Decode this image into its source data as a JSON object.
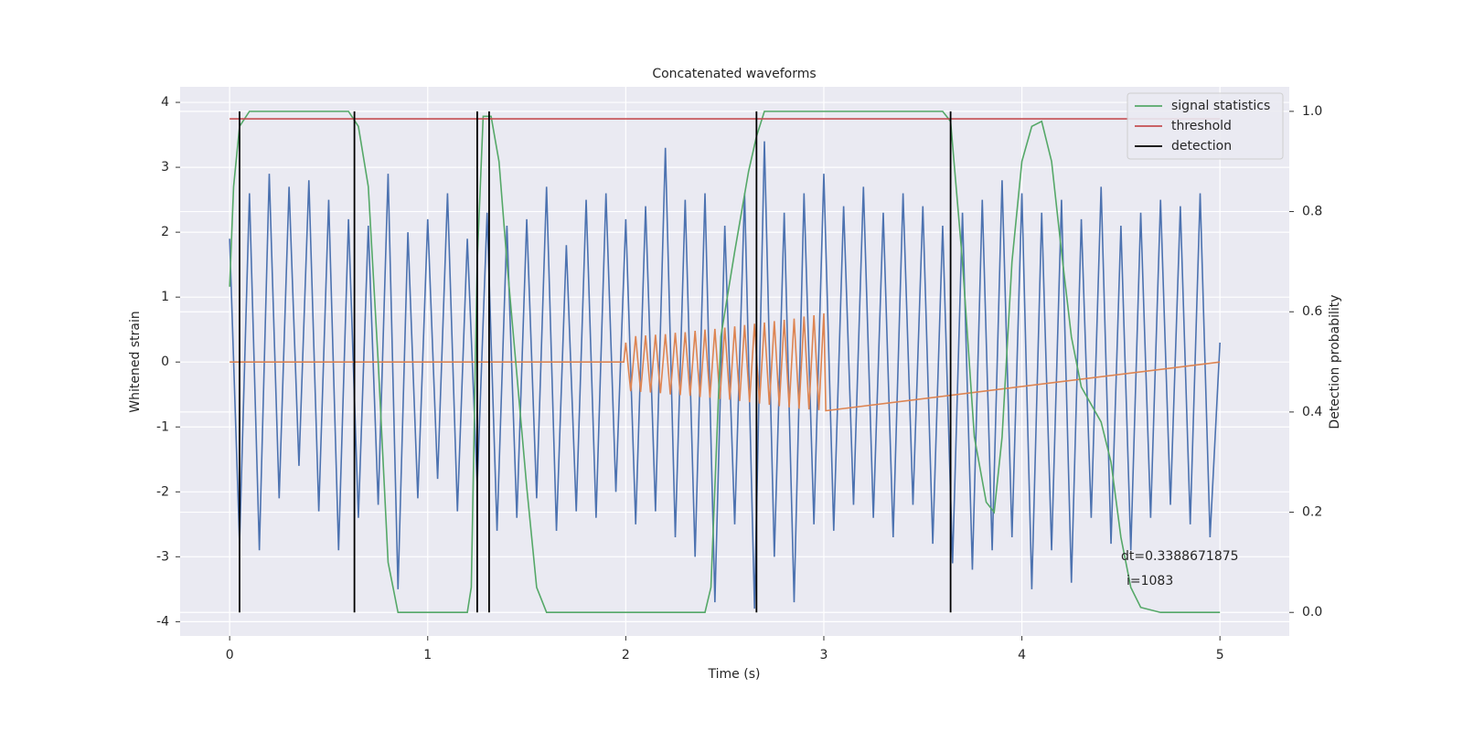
{
  "chart_data": {
    "type": "line",
    "title": "Concatenated waveforms",
    "x_label": "Time (s)",
    "y_label": "Whitened strain",
    "y2_label": "Detection probability",
    "xlim": [
      -0.25,
      5.35
    ],
    "ylim": [
      -4.22,
      4.24
    ],
    "y2lim": [
      -0.047,
      1.049
    ],
    "xticks": [
      0,
      1,
      2,
      3,
      4,
      5
    ],
    "yticks": [
      -4,
      -3,
      -2,
      -1,
      0,
      1,
      2,
      3,
      4
    ],
    "y2ticks": [
      {
        "value": 0,
        "label": "0.0"
      },
      0.2,
      0.4,
      0.6,
      0.8,
      {
        "value": 1,
        "label": "1.0"
      }
    ],
    "grid": true,
    "legend": "upper right",
    "annotations": [
      "dt=0.3388671875",
      "i=1083"
    ],
    "series": [
      {
        "color": "#4c72b0",
        "x": [
          0,
          0.05,
          0.1,
          0.15,
          0.2,
          0.25,
          0.3,
          0.35,
          0.4,
          0.45,
          0.5,
          0.55,
          0.6,
          0.65,
          0.7,
          0.75,
          0.8,
          0.85,
          0.9,
          0.95,
          1,
          1.05,
          1.1,
          1.15,
          1.2,
          1.25,
          1.3,
          1.35,
          1.4,
          1.45,
          1.5,
          1.55,
          1.6,
          1.65,
          1.7,
          1.75,
          1.8,
          1.85,
          1.9,
          1.95,
          2,
          2.05,
          2.1,
          2.15,
          2.2,
          2.25,
          2.3,
          2.35,
          2.4,
          2.45,
          2.5,
          2.55,
          2.6,
          2.65,
          2.7,
          2.75,
          2.8,
          2.85,
          2.9,
          2.95,
          3,
          3.05,
          3.1,
          3.15,
          3.2,
          3.25,
          3.3,
          3.35,
          3.4,
          3.45,
          3.5,
          3.55,
          3.6,
          3.65,
          3.7,
          3.75,
          3.8,
          3.85,
          3.9,
          3.95,
          4,
          4.05,
          4.1,
          4.15,
          4.2,
          4.25,
          4.3,
          4.35,
          4.4,
          4.45,
          4.5,
          4.55,
          4.6,
          4.65,
          4.7,
          4.75,
          4.8,
          4.85,
          4.9,
          4.95,
          5
        ],
        "values": [
          1.9,
          -2.8,
          2.6,
          -2.9,
          2.9,
          -2.1,
          2.7,
          -1.6,
          2.8,
          -2.3,
          2.5,
          -2.9,
          2.2,
          -2.4,
          2.1,
          -2.2,
          2.9,
          -3.5,
          2.0,
          -2.1,
          2.2,
          -1.8,
          2.6,
          -2.3,
          1.9,
          -1.9,
          2.3,
          -2.6,
          2.1,
          -2.4,
          2.2,
          -2.1,
          2.7,
          -2.6,
          1.8,
          -2.3,
          2.5,
          -2.4,
          2.6,
          -2.0,
          2.2,
          -2.5,
          2.4,
          -2.3,
          3.3,
          -2.7,
          2.5,
          -3.0,
          2.6,
          -3.7,
          2.1,
          -2.5,
          2.6,
          -3.8,
          3.4,
          -3.0,
          2.3,
          -3.7,
          2.6,
          -2.5,
          2.9,
          -2.6,
          2.4,
          -2.2,
          2.7,
          -2.4,
          2.3,
          -2.7,
          2.6,
          -2.2,
          2.4,
          -2.8,
          2.1,
          -3.1,
          2.3,
          -3.2,
          2.5,
          -2.9,
          2.8,
          -2.7,
          2.6,
          -3.5,
          2.3,
          -2.9,
          2.5,
          -3.4,
          2.2,
          -2.4,
          2.7,
          -2.8,
          2.1,
          -2.9,
          2.3,
          -2.4,
          2.5,
          -2.2,
          2.4,
          -2.5,
          2.6,
          -2.7,
          0.3
        ]
      },
      {
        "color": "#dd8452",
        "x": [
          0,
          1.99,
          2,
          2.025,
          2.05,
          2.075,
          2.1,
          2.125,
          2.15,
          2.175,
          2.2,
          2.225,
          2.25,
          2.275,
          2.3,
          2.325,
          2.35,
          2.375,
          2.4,
          2.425,
          2.45,
          2.475,
          2.5,
          2.525,
          2.55,
          2.575,
          2.6,
          2.625,
          2.65,
          2.675,
          2.7,
          2.725,
          2.75,
          2.775,
          2.8,
          2.825,
          2.85,
          2.875,
          2.9,
          2.925,
          2.95,
          2.975,
          3,
          3.01,
          5
        ],
        "values": [
          0,
          0,
          0.3,
          -0.45,
          0.4,
          -0.46,
          0.41,
          -0.47,
          0.42,
          -0.48,
          0.43,
          -0.5,
          0.45,
          -0.51,
          0.46,
          -0.52,
          0.48,
          -0.54,
          0.5,
          -0.55,
          0.51,
          -0.57,
          0.53,
          -0.58,
          0.55,
          -0.6,
          0.57,
          -0.62,
          0.59,
          -0.64,
          0.61,
          -0.66,
          0.63,
          -0.68,
          0.65,
          -0.7,
          0.67,
          -0.72,
          0.7,
          -0.73,
          0.72,
          -0.74,
          0.75,
          -0.75,
          0
        ]
      },
      {
        "name": "signal statistics",
        "color": "#55a868",
        "axis": "y2",
        "x": [
          0,
          0.02,
          0.05,
          0.1,
          0.6,
          0.65,
          0.7,
          0.75,
          0.8,
          0.85,
          1.2,
          1.22,
          1.25,
          1.28,
          1.32,
          1.36,
          1.4,
          1.5,
          1.55,
          1.6,
          2.4,
          2.43,
          2.48,
          2.55,
          2.62,
          2.66,
          2.7,
          3.6,
          3.64,
          3.7,
          3.76,
          3.82,
          3.86,
          3.9,
          3.95,
          4,
          4.05,
          4.1,
          4.15,
          4.2,
          4.25,
          4.3,
          4.4,
          4.45,
          4.5,
          4.55,
          4.6,
          4.7,
          5
        ],
        "values": [
          0.65,
          0.85,
          0.97,
          1,
          1,
          0.97,
          0.85,
          0.5,
          0.1,
          0,
          0,
          0.05,
          0.7,
          0.99,
          0.99,
          0.9,
          0.7,
          0.25,
          0.05,
          0,
          0,
          0.05,
          0.55,
          0.72,
          0.88,
          0.95,
          1,
          1,
          0.98,
          0.7,
          0.35,
          0.22,
          0.2,
          0.35,
          0.7,
          0.9,
          0.97,
          0.98,
          0.9,
          0.72,
          0.55,
          0.45,
          0.38,
          0.3,
          0.15,
          0.05,
          0.01,
          0,
          0
        ]
      },
      {
        "name": "threshold",
        "color": "#c44e52",
        "axis": "y2",
        "x": [
          0,
          5
        ],
        "values": [
          0.985,
          0.985
        ]
      },
      {
        "name": "detection",
        "type": "vlines",
        "color": "#000000",
        "axis": "y2",
        "x": [
          0.05,
          0.63,
          1.25,
          1.31,
          2.66,
          3.64
        ],
        "ymin": 0,
        "ymax": 1
      }
    ]
  }
}
